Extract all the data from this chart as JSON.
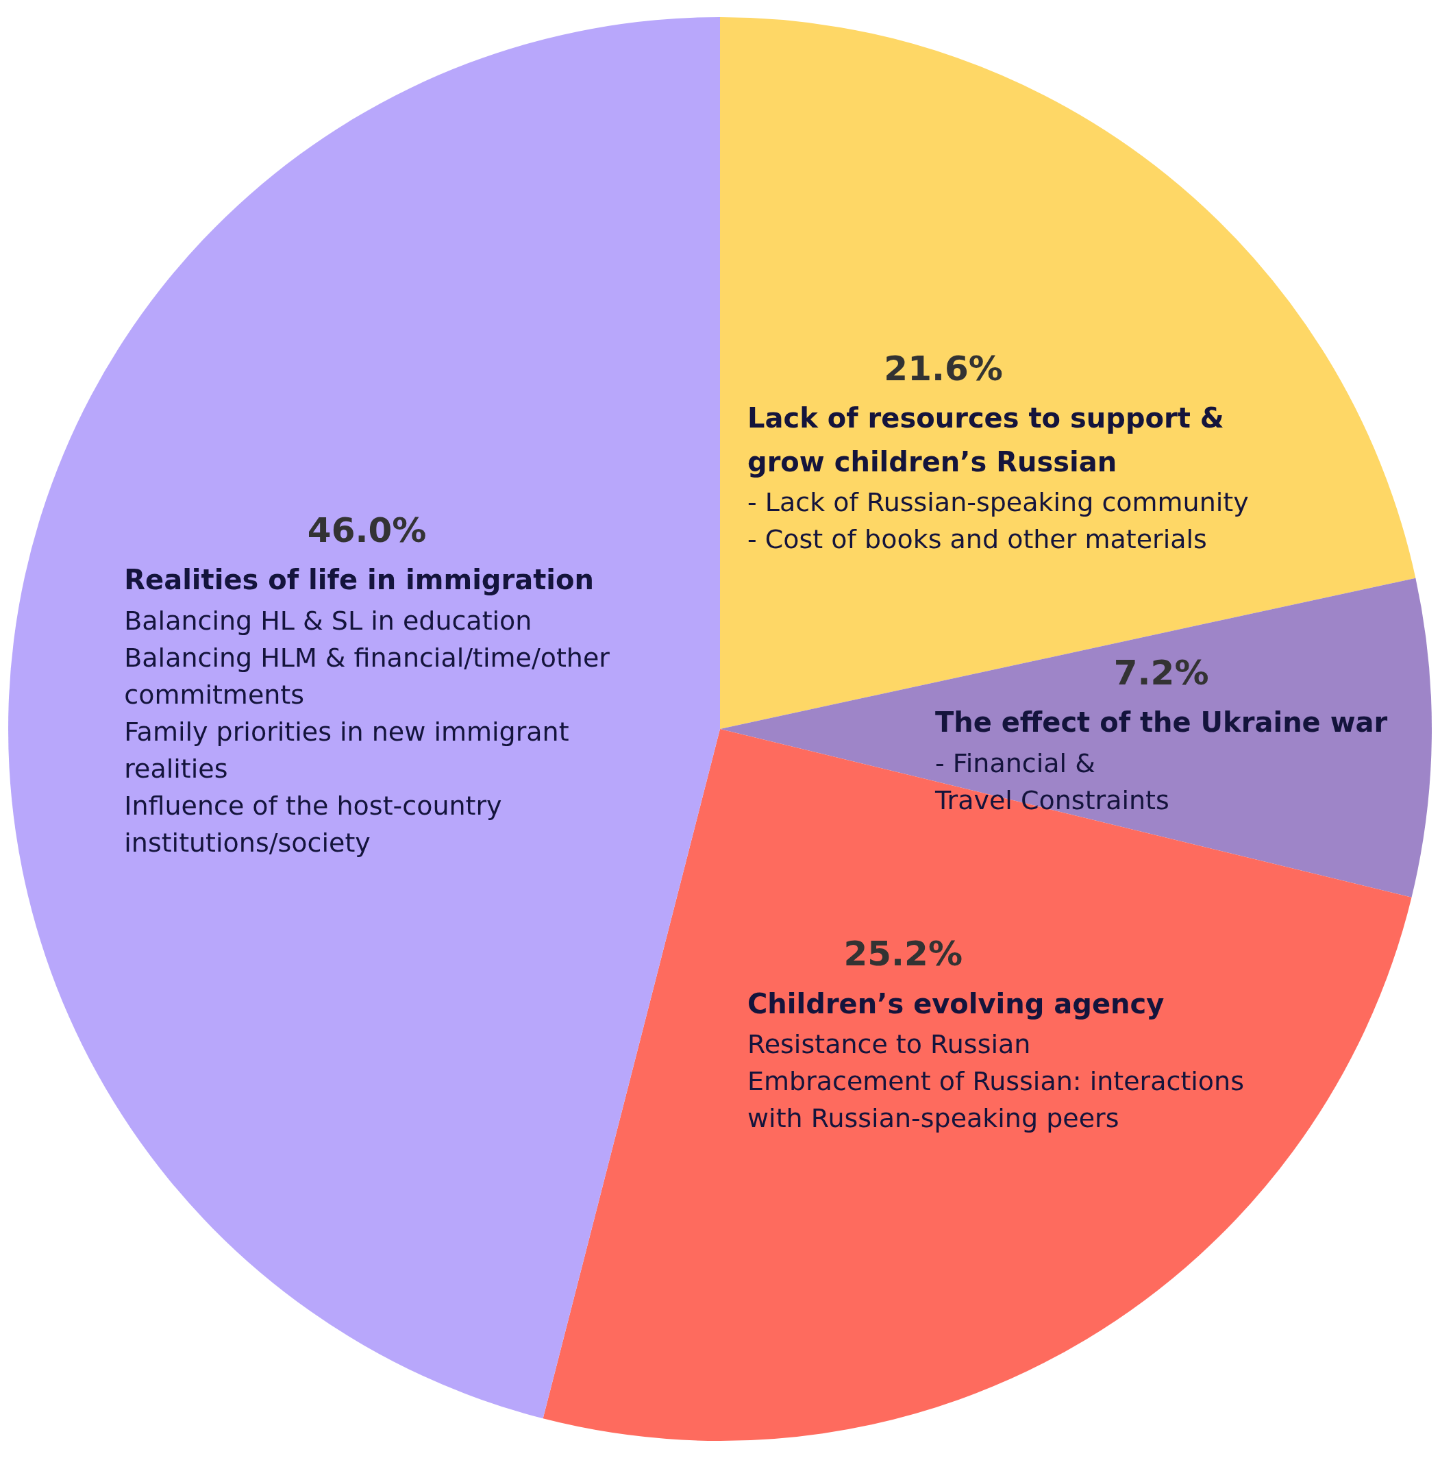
{
  "chart_data": {
    "type": "pie",
    "categories": [
      "Lack of resources to support & grow children’s Russian",
      "The effect of the Ukraine war",
      "Children’s evolving agency",
      "Realities of life in immigration"
    ],
    "values": [
      21.6,
      7.2,
      25.2,
      46.0
    ],
    "value_labels": [
      "21.6%",
      "7.2%",
      "25.2%",
      "46.0%"
    ],
    "colors": [
      "#fed766",
      "#9e85c8",
      "#fe6b5e",
      "#b8a7fb"
    ],
    "annotations": [
      "- Lack of Russian-speaking community\n- Cost of books and other materials",
      "- Financial &\nTravel Constraints",
      "Resistance to Russian\nEmbracement of Russian: interactions with Russian-speaking peers",
      "Balancing HL & SL in education\nBalancing HLM & financial/time/other commitments\nFamily priorities in new immigrant realities\nInfluence of the host-country institutions/society"
    ],
    "legend": false
  }
}
